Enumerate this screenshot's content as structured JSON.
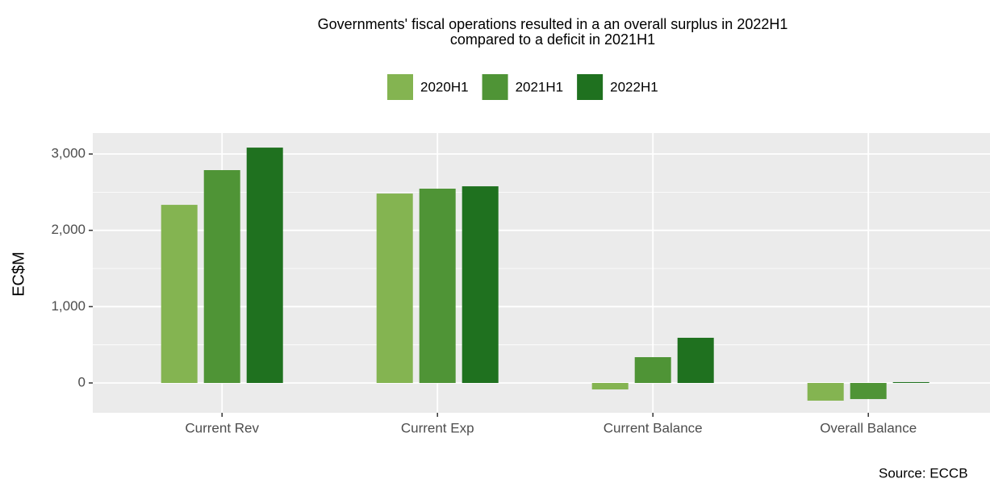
{
  "chart_data": {
    "type": "bar",
    "title": "Governments' fiscal operations resulted in a an overall surplus in 2022H1\ncompared to a deficit in 2021H1",
    "y_label": "EC$M",
    "caption": "Source: ECCB",
    "categories": [
      "Current Rev",
      "Current Exp",
      "Current Balance",
      "Overall Balance"
    ],
    "series": [
      {
        "name": "2020H1",
        "color": "#84b451",
        "values": [
          2334,
          2482,
          -85,
          -232
        ]
      },
      {
        "name": "2021H1",
        "color": "#4f9436",
        "values": [
          2789,
          2546,
          338,
          -211
        ]
      },
      {
        "name": "2022H1",
        "color": "#1f711f",
        "values": [
          3084,
          2577,
          592,
          11
        ]
      }
    ],
    "ylim": [
      -391,
      3275
    ],
    "yticks": [
      0,
      {
        "value": 1000,
        "label": "1,000"
      },
      {
        "value": 2000,
        "label": "2,000"
      },
      {
        "value": 3000,
        "label": "3,000"
      }
    ],
    "y_minor_ticks": [
      500,
      1500,
      2500
    ],
    "grid": true,
    "legend_position": "top"
  }
}
